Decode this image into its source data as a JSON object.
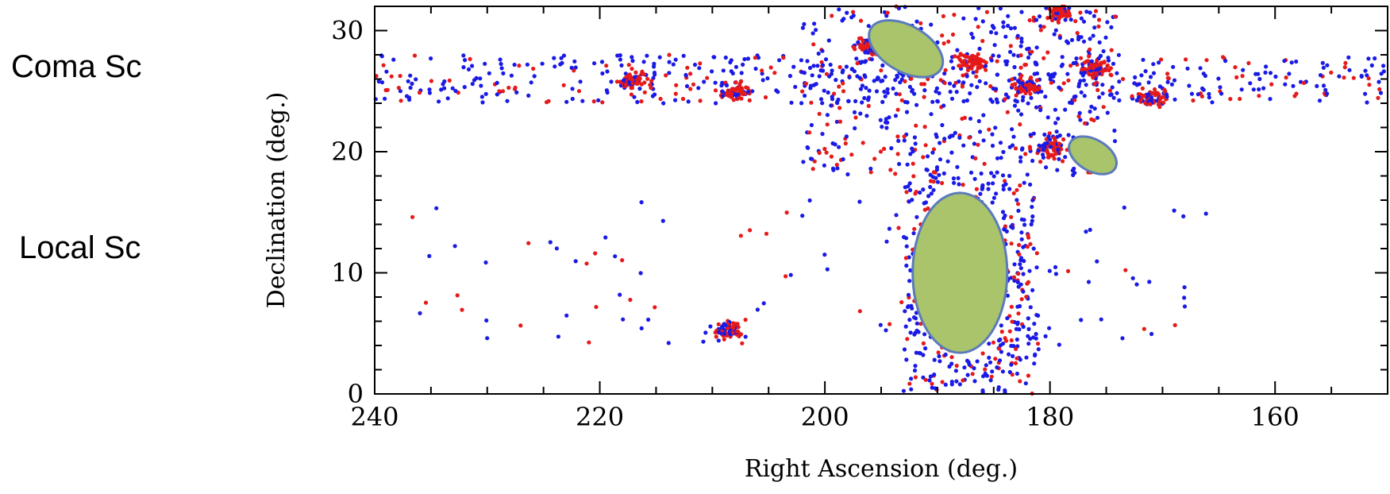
{
  "region_labels": {
    "coma": "Coma Sc",
    "local": "Local Sc"
  },
  "chart_data": {
    "type": "scatter",
    "xlabel": "Right Ascension (deg.)",
    "ylabel": "Declination (deg.)",
    "xlim": [
      240,
      150
    ],
    "ylim": [
      0,
      32
    ],
    "x_ticks": [
      240,
      220,
      200,
      180,
      160
    ],
    "y_ticks": [
      0,
      10,
      20,
      30
    ],
    "x_tick_labels": [
      "240",
      "220",
      "200",
      "180",
      "160"
    ],
    "y_tick_labels": [
      "0",
      "10",
      "20",
      "30"
    ],
    "grid": false,
    "legend": "none",
    "series_colors": [
      "#1a1ae6",
      "#e61a1a"
    ],
    "regions": [
      {
        "shape": "strip",
        "ra": [
          240,
          150
        ],
        "dec": [
          24,
          28
        ],
        "density": "high"
      },
      {
        "shape": "block",
        "ra": [
          202,
          174
        ],
        "dec": [
          18,
          32
        ],
        "density": "high"
      },
      {
        "shape": "strip",
        "ra": [
          193,
          181
        ],
        "dec": [
          0,
          18
        ],
        "density": "high"
      },
      {
        "shape": "field",
        "ra": [
          237,
          165
        ],
        "dec": [
          4,
          16
        ],
        "density": "sparse"
      }
    ],
    "clusters": [
      {
        "ra": 217,
        "dec": 25.8
      },
      {
        "ra": 208,
        "dec": 25.0
      },
      {
        "ra": 196,
        "dec": 28.8
      },
      {
        "ra": 182,
        "dec": 25.5
      },
      {
        "ra": 180,
        "dec": 20.3
      },
      {
        "ra": 179,
        "dec": 31.5
      },
      {
        "ra": 176,
        "dec": 26.8
      },
      {
        "ra": 171,
        "dec": 24.5
      },
      {
        "ra": 187,
        "dec": 27.5
      },
      {
        "ra": 208.5,
        "dec": 5.2
      }
    ],
    "ellipses": [
      {
        "cx": 192.8,
        "cy": 28.5,
        "rx_deg": 3.6,
        "ry_deg": 1.9,
        "rotate": 30,
        "color": "#a9c46a"
      },
      {
        "cx": 176.2,
        "cy": 19.7,
        "rx_deg": 2.3,
        "ry_deg": 1.3,
        "rotate": 30,
        "color": "#a9c46a"
      },
      {
        "cx": 188.0,
        "cy": 10.0,
        "rx_deg": 4.2,
        "ry_deg": 6.6,
        "rotate": 0,
        "color": "#a9c46a"
      }
    ],
    "ellipse_stroke": "#5b7bbb"
  }
}
